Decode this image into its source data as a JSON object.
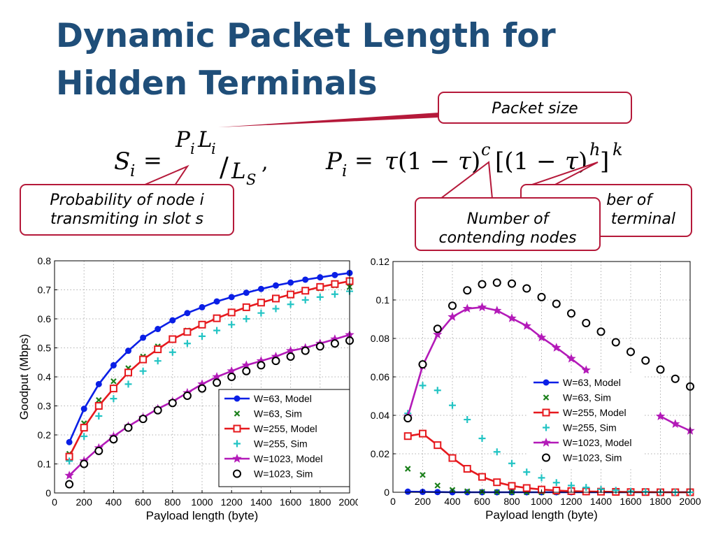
{
  "slide": {
    "title_line1": "Dynamic Packet Length for",
    "title_line2": "Hidden Terminals"
  },
  "formula": {
    "s": "S",
    "i": "i",
    "eq": "=",
    "p": "P",
    "l": "L",
    "slash": "/",
    "comma": ",",
    "tau": "τ",
    "one_minus": "(1 − ",
    "close_paren": ")",
    "c": "c",
    "bracket_open": "[(1 − ",
    "h": "h",
    "bracket_close": "]",
    "k": "k"
  },
  "callouts": {
    "packet_size": "Packet size",
    "probability_line1": "Probability of node i",
    "probability_line2": "transmiting in slot s",
    "number_of_terminal_line1": "ber of",
    "number_of_terminal_line2": "terminal",
    "contending_line1": "Number of",
    "contending_line2": "contending nodes"
  },
  "colors": {
    "title": "#1f4e79",
    "callout_border": "#b5193a",
    "w63_model": "#0a1fe6",
    "w63_sim": "#1a7f1a",
    "w255_model": "#e6191e",
    "w255_sim": "#22c4c4",
    "w1023_model": "#b31ab8",
    "w1023_sim": "#000000"
  },
  "chart_data": [
    {
      "type": "line",
      "xlabel": "Payload length (byte)",
      "ylabel": "Goodput (Mbps)",
      "xlim": [
        0,
        2000
      ],
      "ylim": [
        0,
        0.8
      ],
      "xticks": [
        0,
        200,
        400,
        600,
        800,
        1000,
        1200,
        1400,
        1600,
        1800,
        2000
      ],
      "yticks": [
        0,
        0.1,
        0.2,
        0.3,
        0.4,
        0.5,
        0.6,
        0.7,
        0.8
      ],
      "ytick_labels": [
        "0",
        "0.1",
        "0.2",
        "0.3",
        "0.4",
        "0.5",
        "0.6",
        "0.7",
        "0.8"
      ],
      "grid": true,
      "legend_position": "bottom-right",
      "x": [
        100,
        200,
        300,
        400,
        500,
        600,
        700,
        800,
        900,
        1000,
        1100,
        1200,
        1300,
        1400,
        1500,
        1600,
        1700,
        1800,
        1900,
        2000
      ],
      "series": [
        {
          "name": "W=63, Model",
          "marker": "dot",
          "line": true,
          "color": "#0a1fe6",
          "values": [
            0.175,
            0.29,
            0.375,
            0.44,
            0.49,
            0.535,
            0.565,
            0.595,
            0.62,
            0.64,
            0.66,
            0.675,
            0.69,
            0.703,
            0.715,
            0.725,
            0.735,
            0.743,
            0.751,
            0.758
          ]
        },
        {
          "name": "W=63, Sim",
          "marker": "x",
          "line": false,
          "color": "#1a7f1a",
          "values": [
            0.135,
            0.24,
            0.32,
            0.385,
            0.43,
            0.47,
            0.505,
            0.53,
            0.56,
            0.58,
            0.6,
            0.62,
            0.64,
            0.655,
            0.67,
            0.68,
            0.695,
            0.705,
            0.715,
            0.71
          ]
        },
        {
          "name": "W=255, Model",
          "marker": "square",
          "line": true,
          "color": "#e6191e",
          "values": [
            0.125,
            0.225,
            0.3,
            0.36,
            0.415,
            0.46,
            0.495,
            0.53,
            0.555,
            0.58,
            0.602,
            0.622,
            0.64,
            0.656,
            0.67,
            0.684,
            0.697,
            0.71,
            0.72,
            0.73
          ]
        },
        {
          "name": "W=255, Sim",
          "marker": "plus",
          "line": false,
          "color": "#22c4c4",
          "values": [
            0.11,
            0.195,
            0.265,
            0.325,
            0.375,
            0.42,
            0.455,
            0.485,
            0.515,
            0.54,
            0.56,
            0.58,
            0.6,
            0.62,
            0.635,
            0.65,
            0.665,
            0.675,
            0.685,
            0.695
          ]
        },
        {
          "name": "W=1023, Model",
          "marker": "star",
          "line": true,
          "color": "#b31ab8",
          "values": [
            0.06,
            0.11,
            0.155,
            0.195,
            0.23,
            0.26,
            0.29,
            0.315,
            0.345,
            0.375,
            0.4,
            0.42,
            0.44,
            0.455,
            0.47,
            0.49,
            0.5,
            0.515,
            0.53,
            0.545
          ]
        },
        {
          "name": "W=1023, Sim",
          "marker": "circle",
          "line": false,
          "color": "#000000",
          "values": [
            0.03,
            0.1,
            0.145,
            0.185,
            0.225,
            0.255,
            0.285,
            0.31,
            0.335,
            0.36,
            0.38,
            0.4,
            0.42,
            0.44,
            0.455,
            0.47,
            0.49,
            0.505,
            0.515,
            0.525
          ]
        }
      ]
    },
    {
      "type": "line",
      "xlabel": "Payload length (byte)",
      "ylabel": "",
      "xlim": [
        0,
        2000
      ],
      "ylim": [
        0,
        0.12
      ],
      "xticks": [
        0,
        200,
        400,
        600,
        800,
        1000,
        1200,
        1400,
        1600,
        1800,
        2000
      ],
      "yticks": [
        0,
        0.02,
        0.04,
        0.06,
        0.08,
        0.1,
        0.12
      ],
      "ytick_labels": [
        "0",
        "0.02",
        "0.04",
        "0.06",
        "0.08",
        "0.1",
        "0.12"
      ],
      "grid": true,
      "legend_position": "right",
      "x": [
        100,
        200,
        300,
        400,
        500,
        600,
        700,
        800,
        900,
        1000,
        1100,
        1200,
        1300,
        1400,
        1500,
        1600,
        1700,
        1800,
        1900,
        2000
      ],
      "series": [
        {
          "name": "W=63, Model",
          "marker": "dot",
          "line": true,
          "color": "#0a1fe6",
          "values": [
            0.0003,
            0.0002,
            0.0001,
            0,
            0,
            0,
            0,
            0,
            0,
            0,
            0,
            0,
            0,
            0,
            0,
            0,
            0,
            0,
            0,
            0
          ]
        },
        {
          "name": "W=63, Sim",
          "marker": "x",
          "line": false,
          "color": "#1a7f1a",
          "values": [
            0.0122,
            0.009,
            0.0035,
            0.0012,
            0.0005,
            0.0002,
            0.0001,
            0,
            0,
            0,
            0,
            0,
            0,
            0,
            0,
            0,
            0,
            0,
            0,
            0
          ]
        },
        {
          "name": "W=255, Model",
          "marker": "square",
          "line": true,
          "color": "#e6191e",
          "values": [
            0.0292,
            0.0305,
            0.0245,
            0.0178,
            0.0122,
            0.008,
            0.0052,
            0.0033,
            0.0022,
            0.0014,
            0.0009,
            0.0006,
            0.0004,
            0.0003,
            0.0002,
            0.0001,
            0.0001,
            0,
            0,
            0
          ]
        },
        {
          "name": "W=255, Sim",
          "marker": "plus",
          "line": false,
          "color": "#22c4c4",
          "values": [
            0.041,
            0.0555,
            0.053,
            0.0452,
            0.0378,
            0.028,
            0.021,
            0.015,
            0.0105,
            0.0075,
            0.005,
            0.0035,
            0.0025,
            0.0015,
            0.001,
            0.0005,
            0.0003,
            0.0001,
            0,
            0
          ]
        },
        {
          "name": "W=1023, Model",
          "marker": "star",
          "line": true,
          "color": "#b31ab8",
          "x": [
            100,
            200,
            300,
            400,
            500,
            600,
            700,
            800,
            900,
            1000,
            1100,
            1200,
            1300,
            1800,
            1900,
            2000
          ],
          "values": [
            0.0395,
            0.0658,
            0.082,
            0.0912,
            0.0955,
            0.0962,
            0.0945,
            0.0905,
            0.0865,
            0.0805,
            0.0752,
            0.0695,
            0.0635,
            0.0395,
            0.0355,
            0.032
          ]
        },
        {
          "name": "W=1023, Sim",
          "marker": "circle",
          "line": false,
          "color": "#000000",
          "values": [
            0.0385,
            0.0665,
            0.085,
            0.097,
            0.105,
            0.1082,
            0.109,
            0.1085,
            0.106,
            0.1015,
            0.098,
            0.093,
            0.088,
            0.0835,
            0.078,
            0.073,
            0.0685,
            0.0638,
            0.059,
            0.055
          ]
        }
      ]
    }
  ]
}
